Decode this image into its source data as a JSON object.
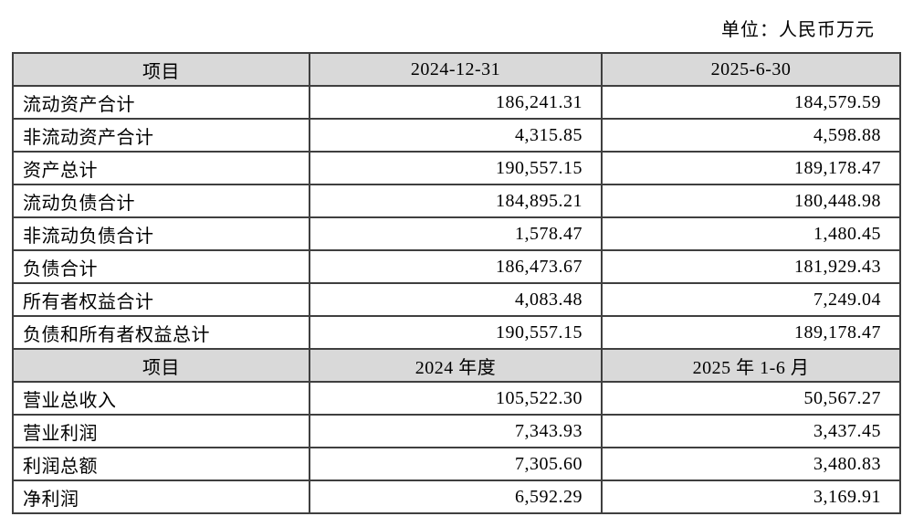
{
  "page": {
    "unit_label": "单位：人民币万元"
  },
  "balance_sheet": {
    "headers": [
      "项目",
      "2024-12-31",
      "2025-6-30"
    ],
    "rows": [
      {
        "item": "流动资产合计",
        "v1": "186,241.31",
        "v2": "184,579.59"
      },
      {
        "item": "非流动资产合计",
        "v1": "4,315.85",
        "v2": "4,598.88"
      },
      {
        "item": "资产总计",
        "v1": "190,557.15",
        "v2": "189,178.47"
      },
      {
        "item": "流动负债合计",
        "v1": "184,895.21",
        "v2": "180,448.98"
      },
      {
        "item": "非流动负债合计",
        "v1": "1,578.47",
        "v2": "1,480.45"
      },
      {
        "item": "负债合计",
        "v1": "186,473.67",
        "v2": "181,929.43"
      },
      {
        "item": "所有者权益合计",
        "v1": "4,083.48",
        "v2": "7,249.04"
      },
      {
        "item": "负债和所有者权益总计",
        "v1": "190,557.15",
        "v2": "189,178.47"
      }
    ]
  },
  "income_statement": {
    "headers": [
      "项目",
      "2024 年度",
      "2025 年 1-6 月"
    ],
    "rows": [
      {
        "item": "营业总收入",
        "v1": "105,522.30",
        "v2": "50,567.27"
      },
      {
        "item": "营业利润",
        "v1": "7,343.93",
        "v2": "3,437.45"
      },
      {
        "item": "利润总额",
        "v1": "7,305.60",
        "v2": "3,480.83"
      },
      {
        "item": "净利润",
        "v1": "6,592.29",
        "v2": "3,169.91"
      }
    ]
  }
}
